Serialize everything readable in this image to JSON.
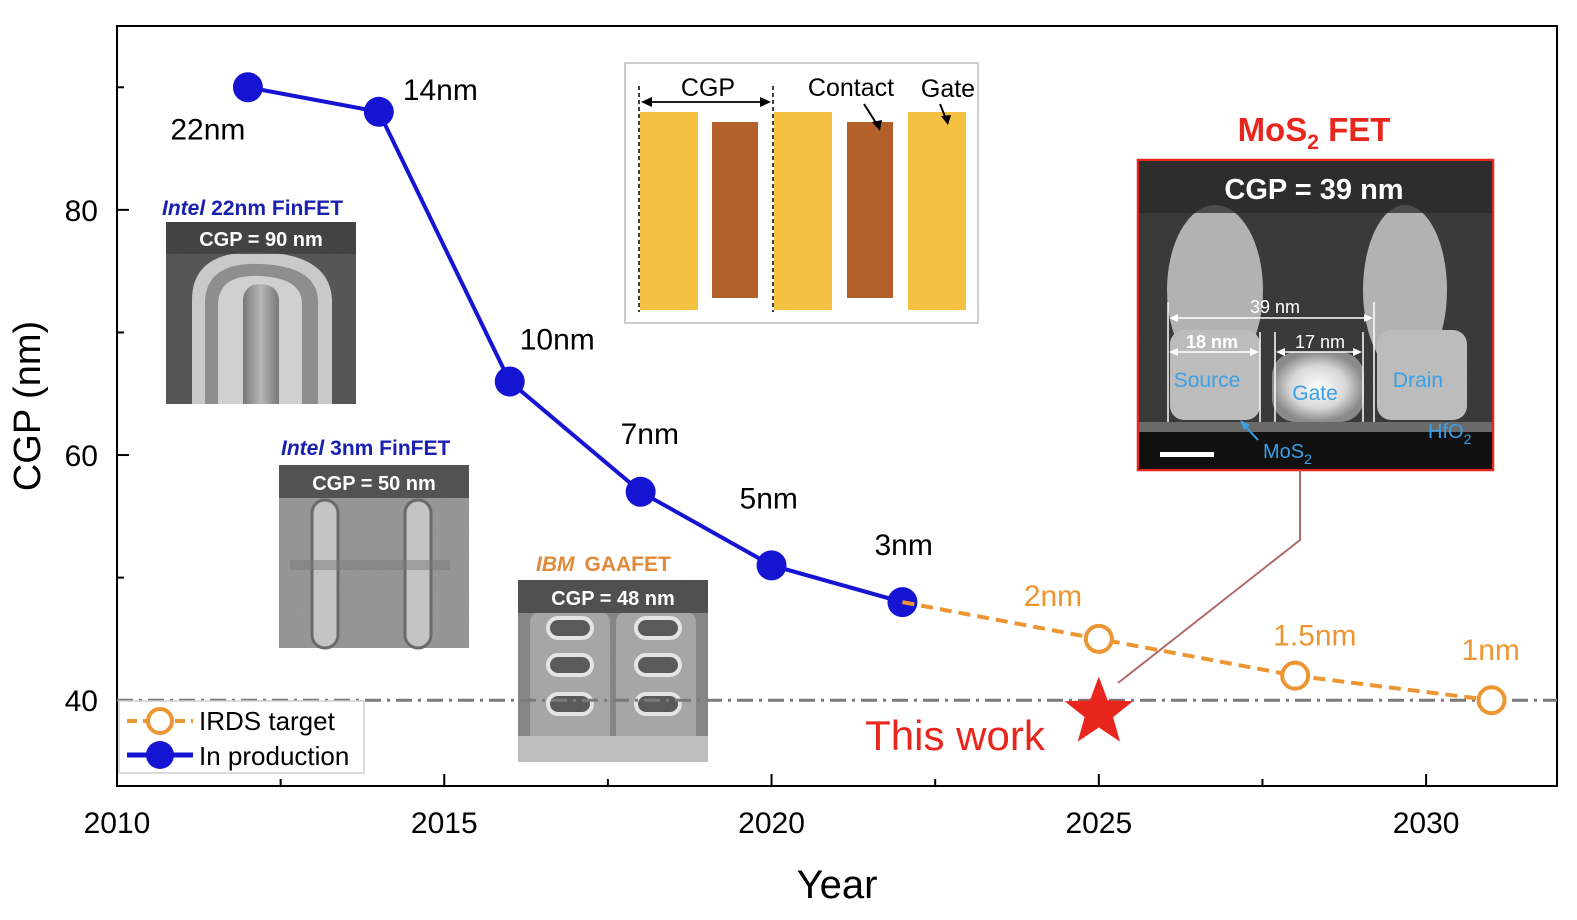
{
  "chart_data": {
    "type": "line",
    "xlabel": "Year",
    "ylabel": "CGP (nm)",
    "xlim": [
      2010,
      2032
    ],
    "ylim": [
      33,
      95
    ],
    "xticks": [
      2010,
      2015,
      2020,
      2025,
      2030
    ],
    "yticks": [
      40,
      60,
      80
    ],
    "grid": false,
    "legend_position": "bottom-left",
    "series": [
      {
        "name": "In production",
        "style": "solid-filled-circle",
        "color": "#1414d2",
        "points": [
          {
            "x": 2012,
            "y": 90,
            "label": "22nm"
          },
          {
            "x": 2014,
            "y": 88,
            "label": "14nm"
          },
          {
            "x": 2016,
            "y": 66,
            "label": "10nm"
          },
          {
            "x": 2018,
            "y": 57,
            "label": "7nm"
          },
          {
            "x": 2020,
            "y": 51,
            "label": "5nm"
          },
          {
            "x": 2022,
            "y": 48,
            "label": "3nm"
          }
        ]
      },
      {
        "name": "IRDS target",
        "style": "dashed-open-circle",
        "color": "#eb9632",
        "points": [
          {
            "x": 2022,
            "y": 48,
            "label": ""
          },
          {
            "x": 2025,
            "y": 45,
            "label": "2nm"
          },
          {
            "x": 2028,
            "y": 42,
            "label": "1.5nm"
          },
          {
            "x": 2031,
            "y": 40,
            "label": "1nm"
          }
        ]
      }
    ],
    "reference_line": {
      "y": 40,
      "style": "dash-dot",
      "color": "#7a7a7a"
    },
    "highlight": {
      "x": 2025,
      "y": 39,
      "label": "This work",
      "marker": "star",
      "color": "#e8261d"
    }
  },
  "insets": {
    "intel22": {
      "brand": "Intel",
      "title": "22nm FinFET",
      "caption": "CGP = 90 nm"
    },
    "intel3": {
      "brand": "Intel",
      "title": "3nm FinFET",
      "caption": "CGP = 50 nm"
    },
    "ibm": {
      "brand": "IBM",
      "title": "GAAFET",
      "caption": "CGP = 48 nm"
    },
    "schematic": {
      "cgp": "CGP",
      "contact": "Contact",
      "gate": "Gate"
    },
    "mos2": {
      "title_main": "MoS",
      "title_sub": "2",
      "title_rest": " FET",
      "caption": "CGP = 39 nm",
      "dim_total": "39 nm",
      "dim_left": "18 nm",
      "dim_right": "17 nm",
      "source": "Source",
      "gate": "Gate",
      "drain": "Drain",
      "hfo_main": "HfO",
      "hfo_sub": "2",
      "mos_main": "MoS",
      "mos_sub": "2"
    }
  },
  "colors": {
    "production": "#1414d2",
    "target": "#eb9632",
    "highlight": "#e8261d",
    "gate_yellow": "#f4c142",
    "contact_brown": "#b4602a",
    "brand_blue": "#1a20b0",
    "brand_orange": "#e08a3a"
  }
}
